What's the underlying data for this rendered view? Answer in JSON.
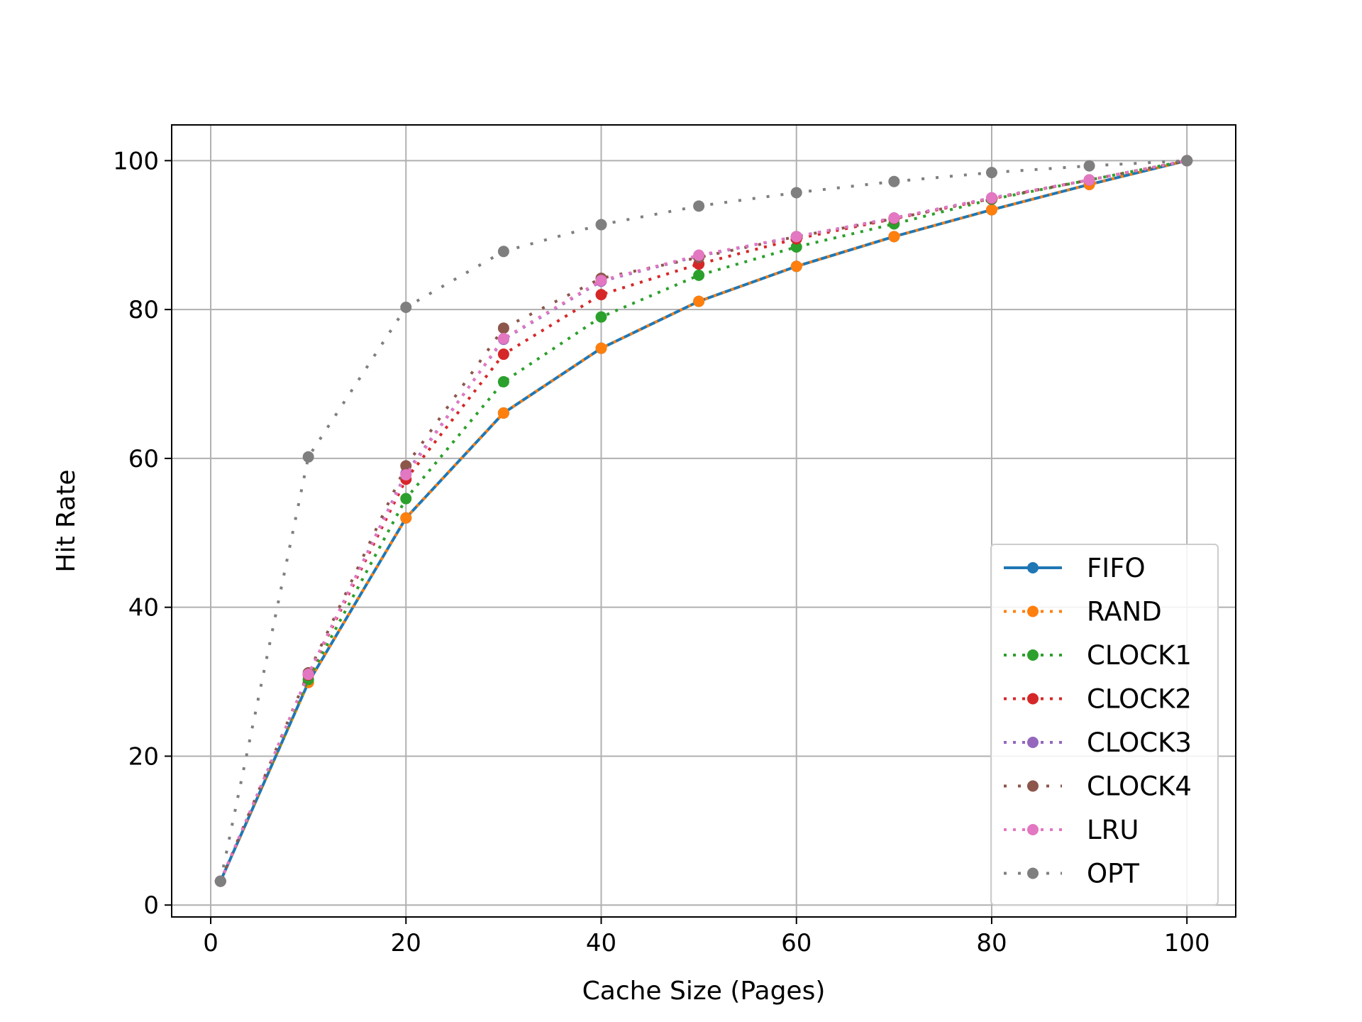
{
  "chart_data": {
    "type": "line",
    "title": "",
    "xlabel": "Cache Size (Pages)",
    "ylabel": "Hit Rate",
    "xlim": [
      -4,
      105
    ],
    "ylim": [
      -1.6,
      104.8
    ],
    "xticks": [
      0,
      20,
      40,
      60,
      80,
      100
    ],
    "yticks": [
      0,
      20,
      40,
      60,
      80,
      100
    ],
    "grid": true,
    "legend_position": "lower-right",
    "x": [
      1,
      10,
      20,
      30,
      40,
      50,
      60,
      70,
      80,
      90,
      100
    ],
    "series": [
      {
        "name": "FIFO",
        "color": "#1f77b4",
        "linestyle": "solid",
        "values": [
          3.2,
          29.9,
          52.0,
          66.1,
          74.8,
          81.1,
          85.8,
          89.8,
          93.4,
          96.8,
          100.0
        ]
      },
      {
        "name": "RAND",
        "color": "#ff7f0e",
        "linestyle": "dotted",
        "values": [
          3.2,
          29.9,
          52.0,
          66.1,
          74.8,
          81.1,
          85.8,
          89.8,
          93.4,
          96.8,
          100.0
        ]
      },
      {
        "name": "CLOCK1",
        "color": "#2ca02c",
        "linestyle": "dotted",
        "values": [
          3.2,
          30.3,
          54.6,
          70.3,
          79.0,
          84.6,
          88.4,
          91.5,
          94.8,
          97.4,
          100.0
        ]
      },
      {
        "name": "CLOCK2",
        "color": "#d62728",
        "linestyle": "dotted",
        "values": [
          3.2,
          30.9,
          57.2,
          74.0,
          82.0,
          86.1,
          89.5,
          92.2,
          94.9,
          97.4,
          100.0
        ]
      },
      {
        "name": "CLOCK3",
        "color": "#9467bd",
        "linestyle": "dotted",
        "values": [
          3.2,
          31.0,
          58.0,
          76.0,
          83.8,
          87.2,
          89.8,
          92.3,
          95.0,
          97.4,
          100.0
        ]
      },
      {
        "name": "CLOCK4",
        "color": "#8c564b",
        "linestyle": "dotted-sparse",
        "values": [
          3.2,
          31.2,
          59.0,
          77.5,
          84.2,
          87.0,
          89.8,
          92.2,
          94.9,
          97.4,
          100.0
        ]
      },
      {
        "name": "LRU",
        "color": "#e377c2",
        "linestyle": "dotted",
        "values": [
          3.2,
          31.0,
          57.8,
          76.1,
          83.9,
          87.3,
          89.8,
          92.3,
          95.0,
          97.4,
          100.0
        ]
      },
      {
        "name": "OPT",
        "color": "#7f7f7f",
        "linestyle": "dotted-sparse",
        "values": [
          3.2,
          60.2,
          80.3,
          87.8,
          91.4,
          93.9,
          95.7,
          97.2,
          98.4,
          99.3,
          100.0
        ]
      }
    ]
  }
}
